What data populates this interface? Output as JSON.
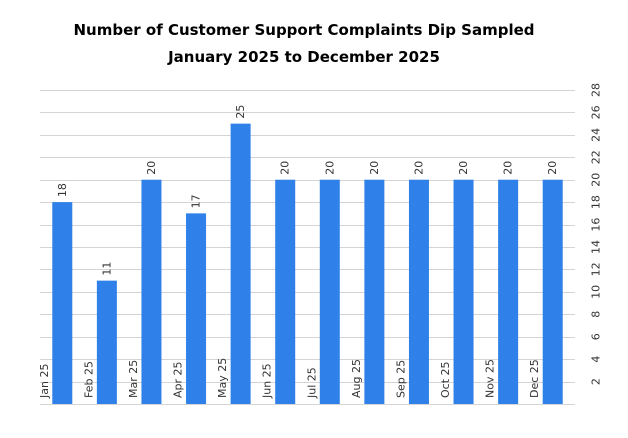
{
  "chart_data": {
    "type": "bar",
    "title_lines": [
      "Number of Customer   Support Complaints Dip Sampled",
      "January 2025 to December 2025"
    ],
    "categories": [
      "Jan 25",
      "Feb 25",
      "Mar 25",
      "Apr 25",
      "May 25",
      "Jun 25",
      "Jul 25",
      "Aug 25",
      "Sep 25",
      "Oct 25",
      "Nov 25",
      "Dec 25"
    ],
    "values": [
      18,
      11,
      20,
      17,
      25,
      20,
      20,
      20,
      20,
      20,
      20,
      20
    ],
    "xlabel": "",
    "ylabel": "",
    "ylim": [
      0,
      28
    ],
    "yticks": [
      2,
      4,
      6,
      8,
      10,
      12,
      14,
      16,
      18,
      20,
      22,
      24,
      26,
      28
    ],
    "y_axis_side": "right",
    "grid": true,
    "legend": "none",
    "bar_color": "#2f80e8",
    "grid_color": "#d4d4d4"
  }
}
